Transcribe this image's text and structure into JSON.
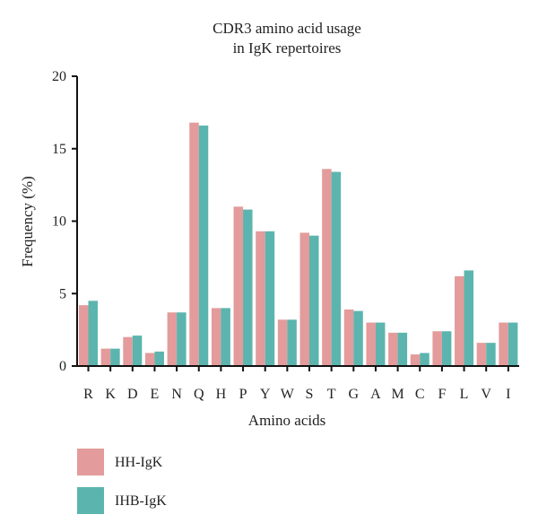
{
  "chart_data": {
    "type": "bar",
    "title_lines": [
      "CDR3 amino acid usage",
      "in IgK repertoires"
    ],
    "xlabel": "Amino acids",
    "ylabel": "Frequency (%)",
    "ylim": [
      0,
      20
    ],
    "yticks": [
      0,
      5,
      10,
      15,
      20
    ],
    "categories": [
      "R",
      "K",
      "D",
      "E",
      "N",
      "Q",
      "H",
      "P",
      "Y",
      "W",
      "S",
      "T",
      "G",
      "A",
      "M",
      "C",
      "F",
      "L",
      "V",
      "I"
    ],
    "series": [
      {
        "name": "HH-IgK",
        "color": "#e39b9b",
        "values": [
          4.2,
          1.2,
          2.0,
          0.9,
          3.7,
          16.8,
          4.0,
          11.0,
          9.3,
          3.2,
          9.2,
          13.6,
          3.9,
          3.0,
          2.3,
          0.8,
          2.4,
          6.2,
          1.6,
          3.0
        ]
      },
      {
        "name": "IHB-IgK",
        "color": "#5bb5ae",
        "values": [
          4.5,
          1.2,
          2.1,
          1.0,
          3.7,
          16.6,
          4.0,
          10.8,
          9.3,
          3.2,
          9.0,
          13.4,
          3.8,
          3.0,
          2.3,
          0.9,
          2.4,
          6.6,
          1.6,
          3.0
        ]
      }
    ],
    "grid": false,
    "legend_position": "bottom-left"
  }
}
